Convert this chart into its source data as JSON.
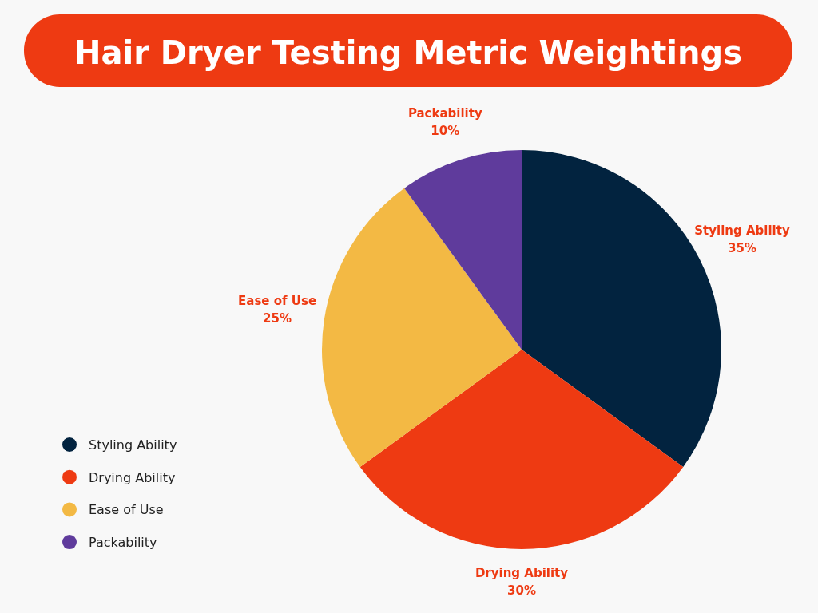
{
  "chart_data": {
    "type": "pie",
    "title": "Hair Dryer Testing Metric Weightings",
    "categories": [
      "Styling Ability",
      "Drying Ability",
      "Ease of Use",
      "Packability"
    ],
    "values": [
      35,
      30,
      25,
      10
    ],
    "value_labels": [
      "35%",
      "30%",
      "25%",
      "10%"
    ],
    "colors": [
      "#02233f",
      "#ee3a12",
      "#f3b944",
      "#5f3b9c"
    ],
    "legend": "bottom left"
  }
}
